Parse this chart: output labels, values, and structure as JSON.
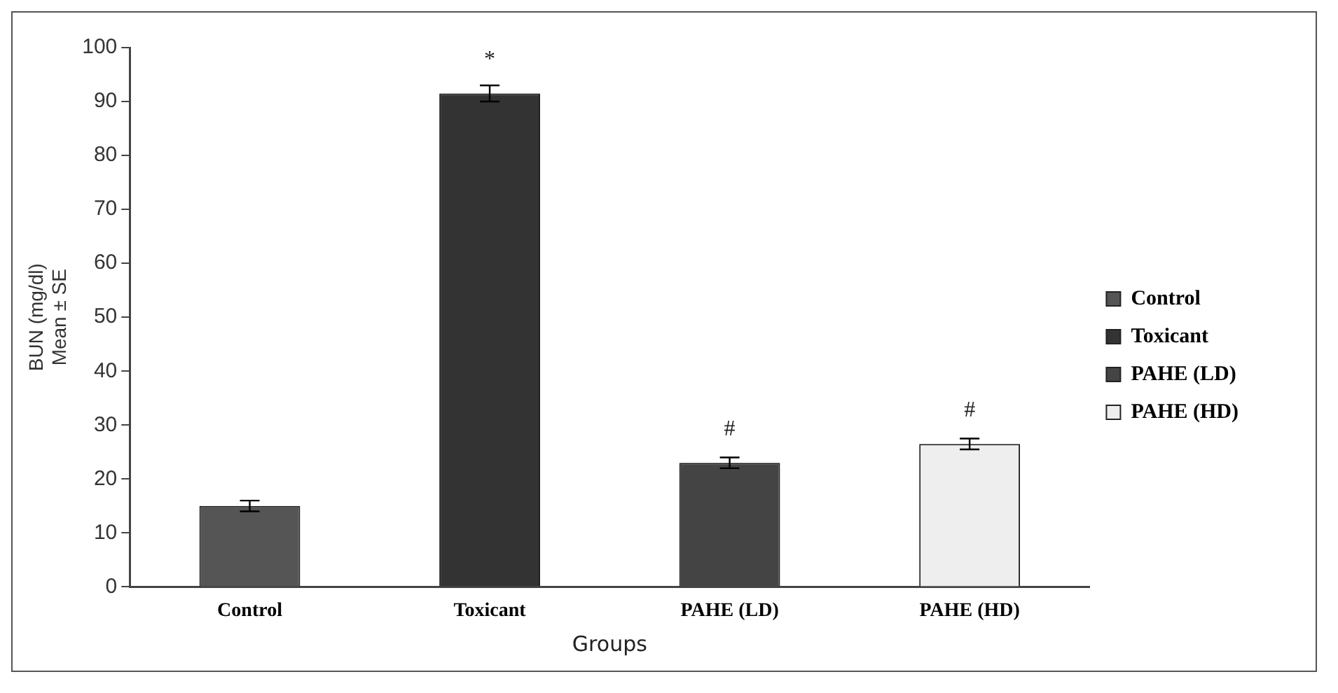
{
  "chart_data": {
    "type": "bar",
    "xlabel": "Groups",
    "ylabel": "BUN (mg/dl)\nMean ± SE",
    "categories": [
      "Control",
      "Toxicant",
      "PAHE (LD)",
      "PAHE (HD)"
    ],
    "series": [
      {
        "name": "Control",
        "color": "#555555",
        "values": [
          15,
          null,
          null,
          null
        ],
        "errors": [
          1,
          null,
          null,
          null
        ]
      },
      {
        "name": "Toxicant",
        "color": "#333333",
        "values": [
          null,
          91.5,
          null,
          null
        ],
        "errors": [
          null,
          1.5,
          null,
          null
        ]
      },
      {
        "name": "PAHE (LD)",
        "color": "#444444",
        "values": [
          null,
          null,
          23,
          null
        ],
        "errors": [
          null,
          null,
          1,
          null
        ]
      },
      {
        "name": "PAHE (HD)",
        "color": "#eeeeee",
        "values": [
          null,
          null,
          null,
          26.5
        ],
        "errors": [
          null,
          null,
          null,
          1
        ]
      }
    ],
    "ylim": [
      0,
      100
    ],
    "yticks": [
      0,
      10,
      20,
      30,
      40,
      50,
      60,
      70,
      80,
      90,
      100
    ],
    "grid": false,
    "legend": "right",
    "annotations": [
      {
        "text": "*",
        "x": "Toxicant",
        "y": 91.5
      },
      {
        "text": "#",
        "x": "PAHE (LD)",
        "y": 23
      },
      {
        "text": "#",
        "x": "PAHE (HD)",
        "y": 26.5
      }
    ]
  }
}
